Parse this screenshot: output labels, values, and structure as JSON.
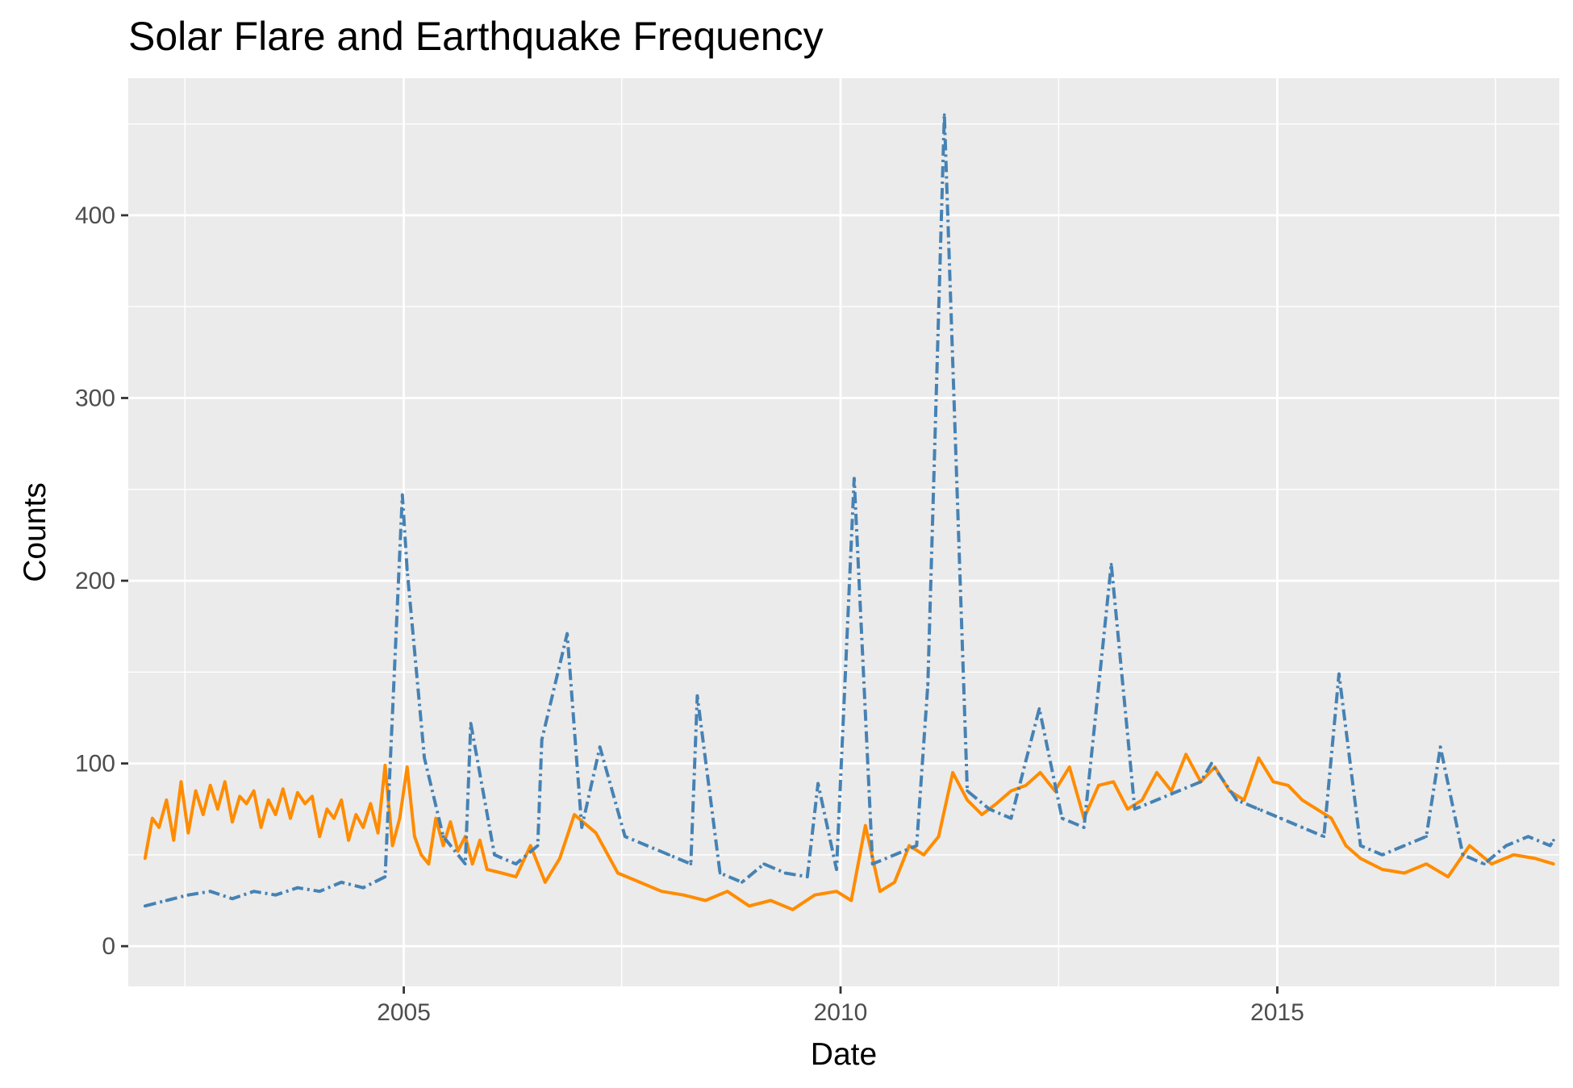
{
  "chart_data": {
    "type": "line",
    "title": "Solar Flare and Earthquake Frequency",
    "xlabel": "Date",
    "ylabel": "Counts",
    "xlim": [
      "2001-11-06",
      "2018-03-25"
    ],
    "ylim": [
      -22,
      475
    ],
    "x_major_ticks": [
      "2005-01-01",
      "2010-01-01",
      "2015-01-01"
    ],
    "x_minor_ticks": [
      "2002-07-01",
      "2007-07-01",
      "2012-07-01",
      "2017-07-01"
    ],
    "x_tick_labels": [
      "2005",
      "2010",
      "2015"
    ],
    "y_major_ticks": [
      0,
      100,
      200,
      300,
      400
    ],
    "y_minor_ticks": [
      50,
      150,
      250,
      350,
      450
    ],
    "y_tick_labels": [
      "0",
      "100",
      "200",
      "300",
      "400"
    ],
    "grid": true,
    "legend": "none",
    "colors": {
      "panel_background": "#EBEBEB",
      "grid": "#FFFFFF",
      "series_orange": "#FF8C00",
      "series_blue": "#4682B4"
    },
    "series": [
      {
        "color": "#FF8C00",
        "line_style": "solid",
        "x": [
          "2002-01-15",
          "2002-02-15",
          "2002-03-15",
          "2002-04-15",
          "2002-05-15",
          "2002-06-15",
          "2002-07-15",
          "2002-08-15",
          "2002-09-15",
          "2002-10-15",
          "2002-11-15",
          "2002-12-15",
          "2003-01-15",
          "2003-02-15",
          "2003-03-15",
          "2003-04-15",
          "2003-05-15",
          "2003-06-15",
          "2003-07-15",
          "2003-08-15",
          "2003-09-15",
          "2003-10-15",
          "2003-11-15",
          "2003-12-15",
          "2004-01-15",
          "2004-02-15",
          "2004-03-15",
          "2004-04-15",
          "2004-05-15",
          "2004-06-15",
          "2004-07-15",
          "2004-08-15",
          "2004-09-15",
          "2004-10-15",
          "2004-11-15",
          "2004-12-15",
          "2005-01-15",
          "2005-02-15",
          "2005-03-15",
          "2005-04-15",
          "2005-05-15",
          "2005-06-15",
          "2005-07-15",
          "2005-08-15",
          "2005-09-15",
          "2005-10-15",
          "2005-11-15",
          "2005-12-15",
          "2006-02-15",
          "2006-04-15",
          "2006-06-15",
          "2006-08-15",
          "2006-10-15",
          "2006-12-15",
          "2007-03-15",
          "2007-06-15",
          "2007-09-15",
          "2007-12-15",
          "2008-03-15",
          "2008-06-15",
          "2008-09-15",
          "2008-12-15",
          "2009-03-15",
          "2009-06-15",
          "2009-09-15",
          "2009-12-15",
          "2010-02-15",
          "2010-04-15",
          "2010-06-15",
          "2010-08-15",
          "2010-10-15",
          "2010-12-15",
          "2011-02-15",
          "2011-04-15",
          "2011-06-15",
          "2011-08-15",
          "2011-10-15",
          "2011-12-15",
          "2012-02-15",
          "2012-04-15",
          "2012-06-15",
          "2012-08-15",
          "2012-10-15",
          "2012-12-15",
          "2013-02-15",
          "2013-04-15",
          "2013-06-15",
          "2013-08-15",
          "2013-10-15",
          "2013-12-15",
          "2014-02-15",
          "2014-04-15",
          "2014-06-15",
          "2014-08-15",
          "2014-10-15",
          "2014-12-15",
          "2015-02-15",
          "2015-04-15",
          "2015-06-15",
          "2015-08-15",
          "2015-10-15",
          "2015-12-15",
          "2016-03-15",
          "2016-06-15",
          "2016-09-15",
          "2016-12-15",
          "2017-03-15",
          "2017-06-15",
          "2017-09-15",
          "2017-12-15",
          "2018-03-01"
        ],
        "y": [
          48,
          70,
          65,
          80,
          58,
          90,
          62,
          85,
          72,
          88,
          75,
          90,
          68,
          82,
          78,
          85,
          65,
          80,
          72,
          86,
          70,
          84,
          78,
          82,
          60,
          75,
          70,
          80,
          58,
          72,
          65,
          78,
          62,
          99,
          55,
          70,
          98,
          60,
          50,
          45,
          70,
          55,
          68,
          52,
          60,
          45,
          58,
          42,
          40,
          38,
          55,
          35,
          48,
          72,
          62,
          40,
          35,
          30,
          28,
          25,
          30,
          22,
          25,
          20,
          28,
          30,
          25,
          66,
          30,
          35,
          55,
          50,
          60,
          95,
          80,
          72,
          78,
          85,
          88,
          95,
          85,
          98,
          70,
          88,
          90,
          75,
          80,
          95,
          85,
          105,
          90,
          98,
          85,
          80,
          103,
          90,
          88,
          80,
          75,
          70,
          55,
          48,
          42,
          40,
          45,
          38,
          55,
          45,
          50,
          48,
          45
        ]
      },
      {
        "color": "#4682B4",
        "line_style": "dashed",
        "x": [
          "2002-01-15",
          "2002-04-15",
          "2002-07-15",
          "2002-10-15",
          "2003-01-15",
          "2003-04-15",
          "2003-07-15",
          "2003-10-15",
          "2004-01-15",
          "2004-04-15",
          "2004-07-15",
          "2004-10-15",
          "2004-12-26",
          "2005-01-15",
          "2005-03-28",
          "2005-06-15",
          "2005-09-15",
          "2005-10-08",
          "2006-01-15",
          "2006-04-15",
          "2006-07-15",
          "2006-08-01",
          "2006-11-15",
          "2007-01-15",
          "2007-04-01",
          "2007-07-15",
          "2007-10-15",
          "2008-01-15",
          "2008-04-15",
          "2008-05-12",
          "2008-08-15",
          "2008-11-15",
          "2009-02-15",
          "2009-05-15",
          "2009-08-15",
          "2009-09-29",
          "2009-12-15",
          "2010-02-27",
          "2010-05-15",
          "2010-08-15",
          "2010-11-15",
          "2011-01-01",
          "2011-03-11",
          "2011-06-15",
          "2011-09-15",
          "2011-12-15",
          "2012-04-11",
          "2012-07-15",
          "2012-10-15",
          "2013-02-06",
          "2013-05-15",
          "2013-08-15",
          "2013-11-15",
          "2014-02-15",
          "2014-04-01",
          "2014-07-15",
          "2014-10-15",
          "2015-01-15",
          "2015-04-15",
          "2015-07-15",
          "2015-09-16",
          "2015-12-15",
          "2016-03-15",
          "2016-06-15",
          "2016-09-15",
          "2016-11-13",
          "2017-02-15",
          "2017-05-15",
          "2017-08-15",
          "2017-11-15",
          "2018-02-15",
          "2018-03-01"
        ],
        "y": [
          22,
          25,
          28,
          30,
          26,
          30,
          28,
          32,
          30,
          35,
          32,
          38,
          247,
          206,
          103,
          60,
          45,
          122,
          50,
          45,
          55,
          113,
          171,
          65,
          109,
          60,
          55,
          50,
          45,
          137,
          40,
          35,
          45,
          40,
          38,
          89,
          42,
          256,
          45,
          50,
          55,
          143,
          455,
          85,
          75,
          70,
          130,
          70,
          65,
          209,
          75,
          80,
          85,
          90,
          100,
          80,
          75,
          70,
          65,
          60,
          149,
          55,
          50,
          55,
          60,
          109,
          50,
          45,
          55,
          60,
          55,
          58
        ]
      }
    ]
  }
}
